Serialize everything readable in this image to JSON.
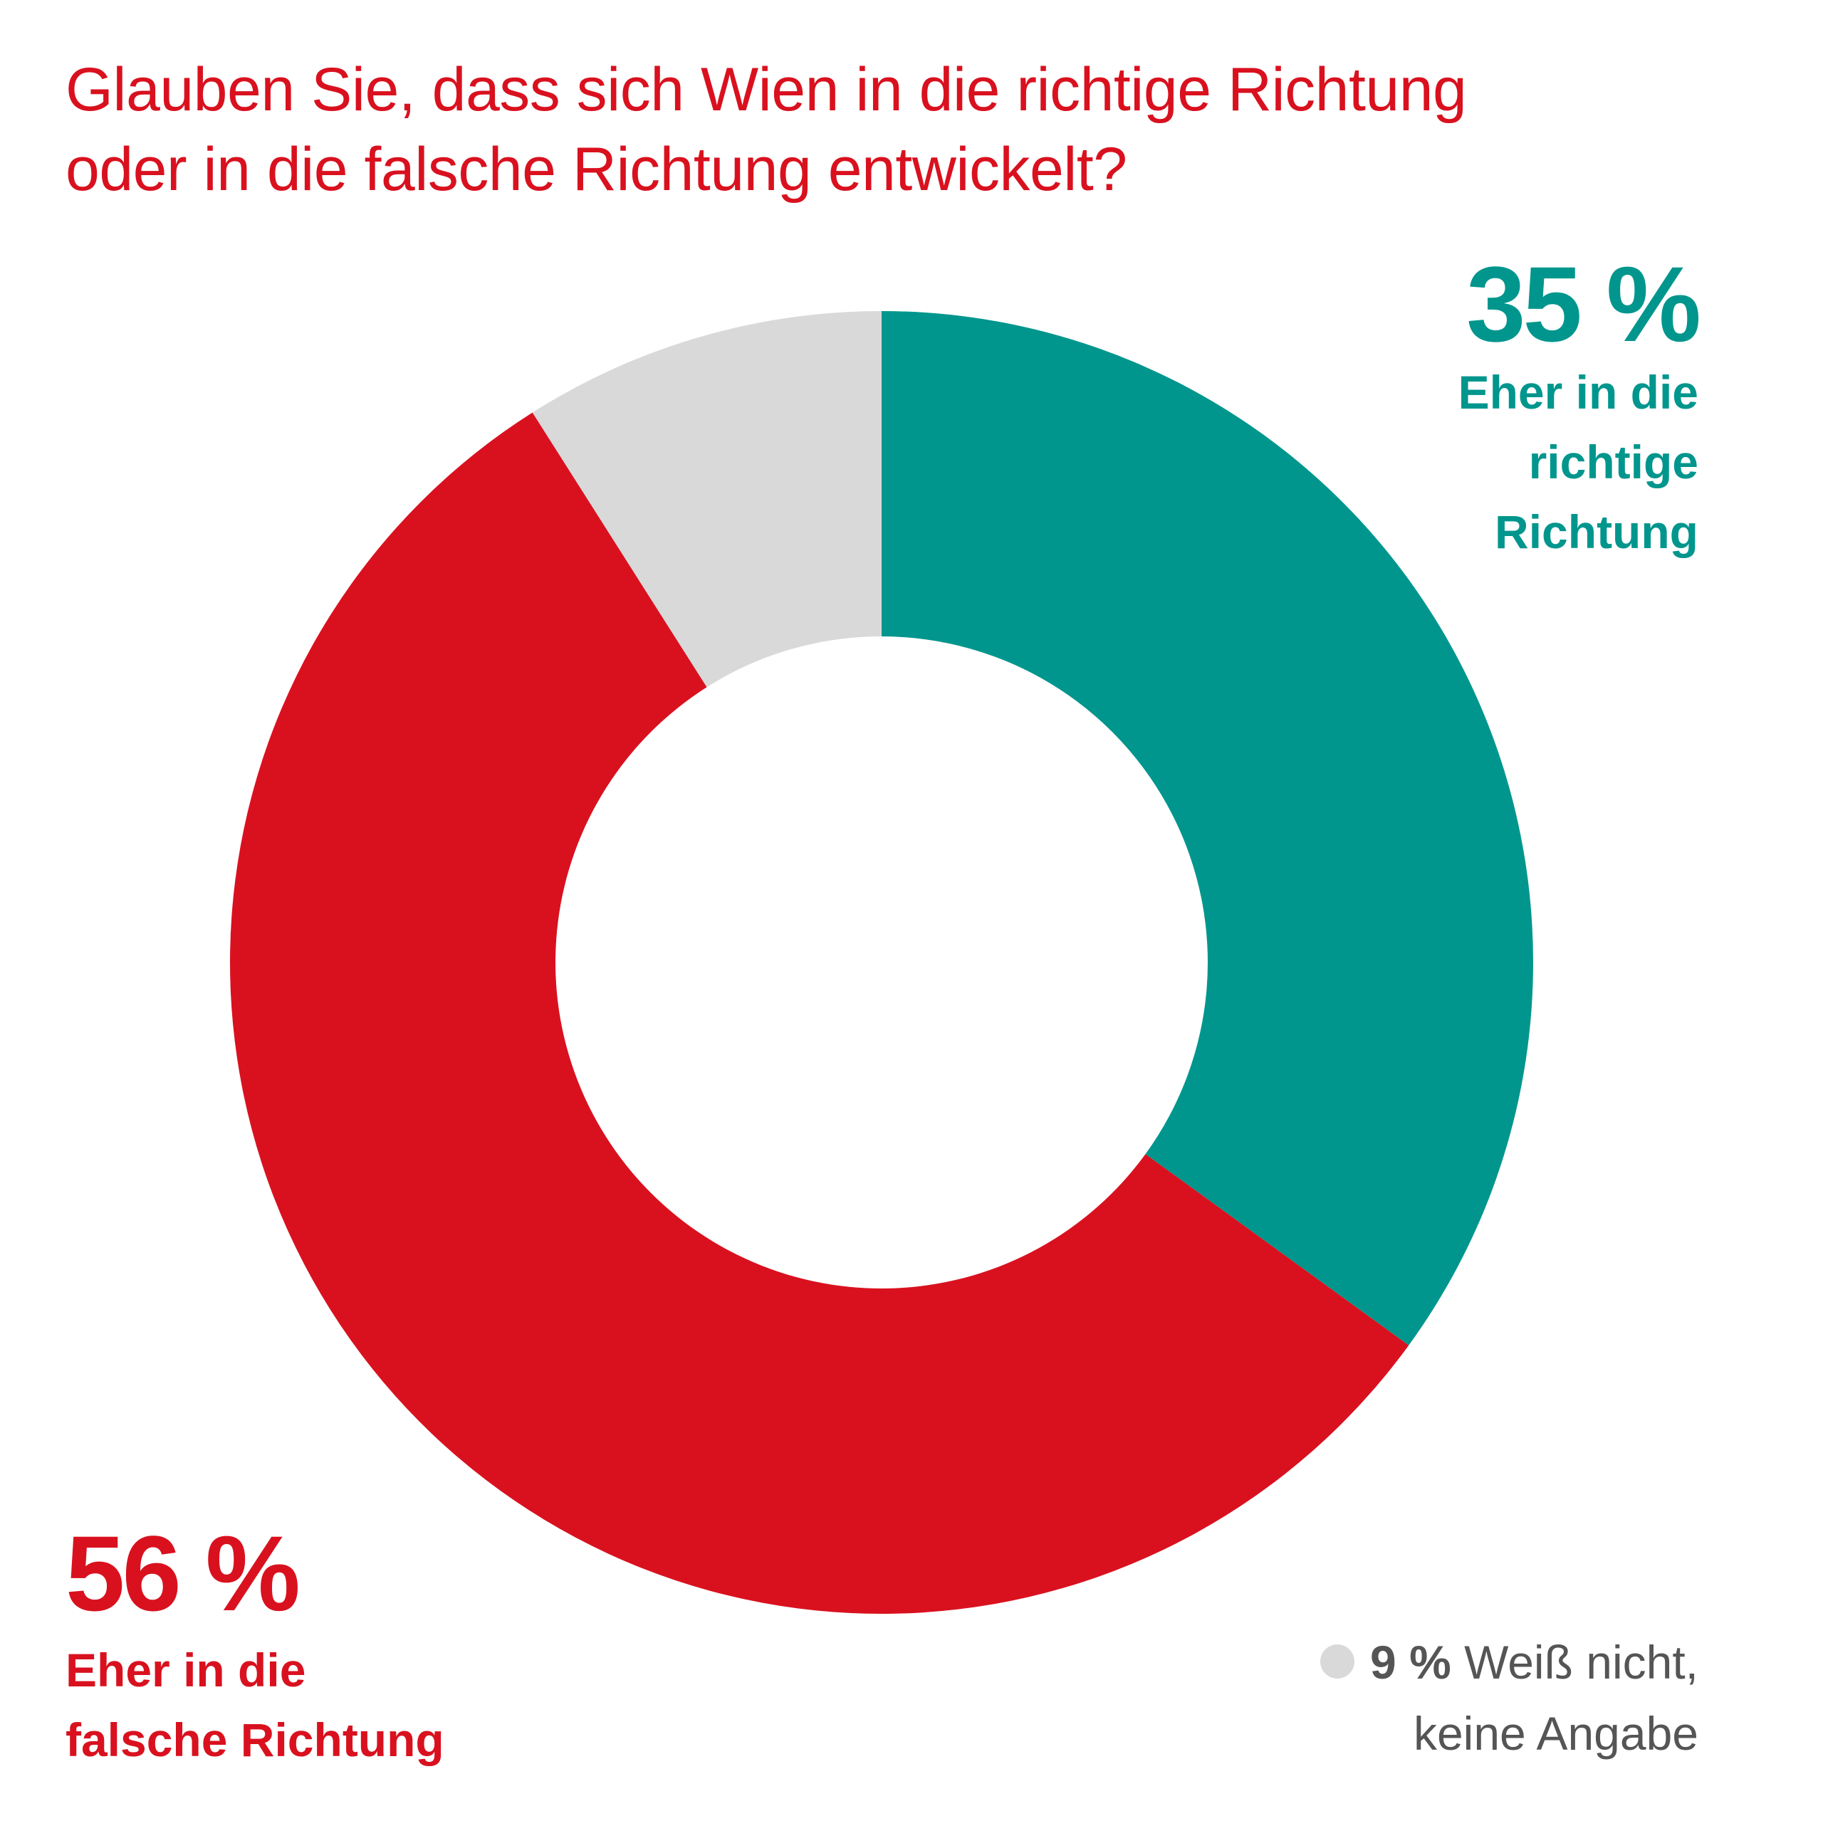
{
  "chart_data": {
    "type": "pie",
    "variant": "donut",
    "title_lines": [
      "Glauben Sie, dass sich Wien in die richtige Richtung",
      "oder in die falsche Richtung entwickelt?"
    ],
    "slices": [
      {
        "value": 35,
        "pct_label": "35 %",
        "label_lines": [
          "Eher in die",
          "richtige",
          "Richtung"
        ],
        "color": "#00968d"
      },
      {
        "value": 56,
        "pct_label": "56 %",
        "label_lines": [
          "Eher in die",
          "falsche Richtung"
        ],
        "color": "#d9111f"
      },
      {
        "value": 9,
        "pct_label": "9 %",
        "label_lines": [
          "Weiß nicht,",
          "keine Angabe"
        ],
        "color": "#d9d9d9"
      }
    ],
    "start_angle": "12 o'clock",
    "direction": "clockwise",
    "legend": "none"
  }
}
